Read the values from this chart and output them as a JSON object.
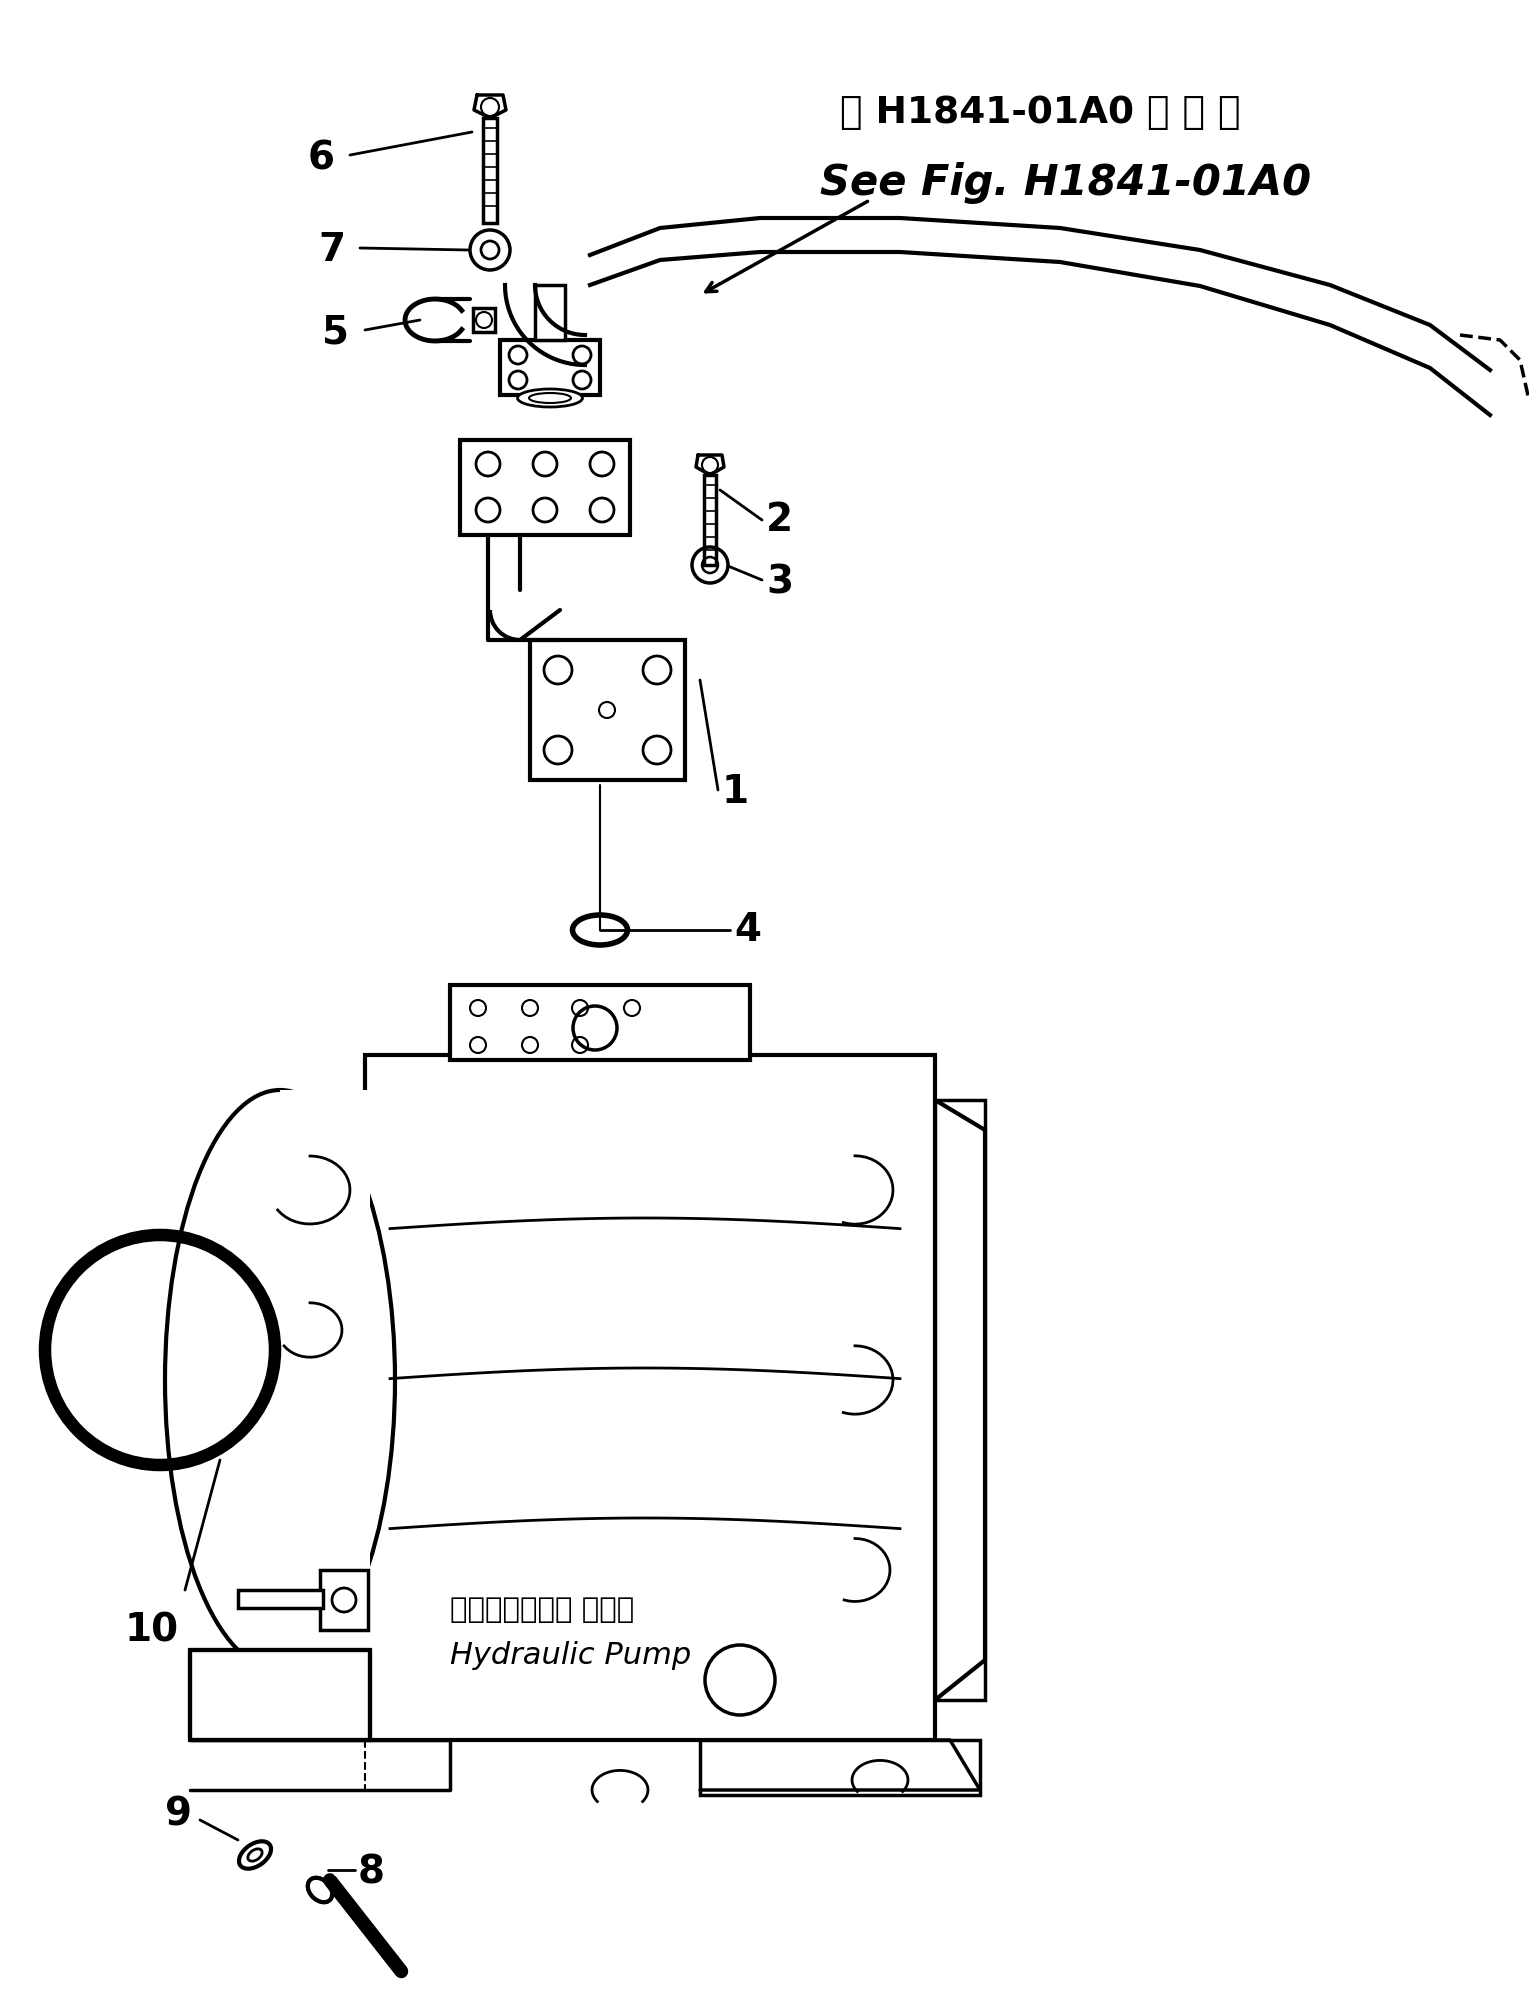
{
  "bg_color": "#ffffff",
  "line_color": "#000000",
  "title_jp": "第 H1841-01A0 図 参 照",
  "title_en": "See Fig. H1841-01A0",
  "label_pump_jp": "ハイドロリック ポンプ",
  "label_pump_en": "Hydraulic Pump",
  "figsize": [
    15.29,
    19.94
  ],
  "dpi": 100
}
